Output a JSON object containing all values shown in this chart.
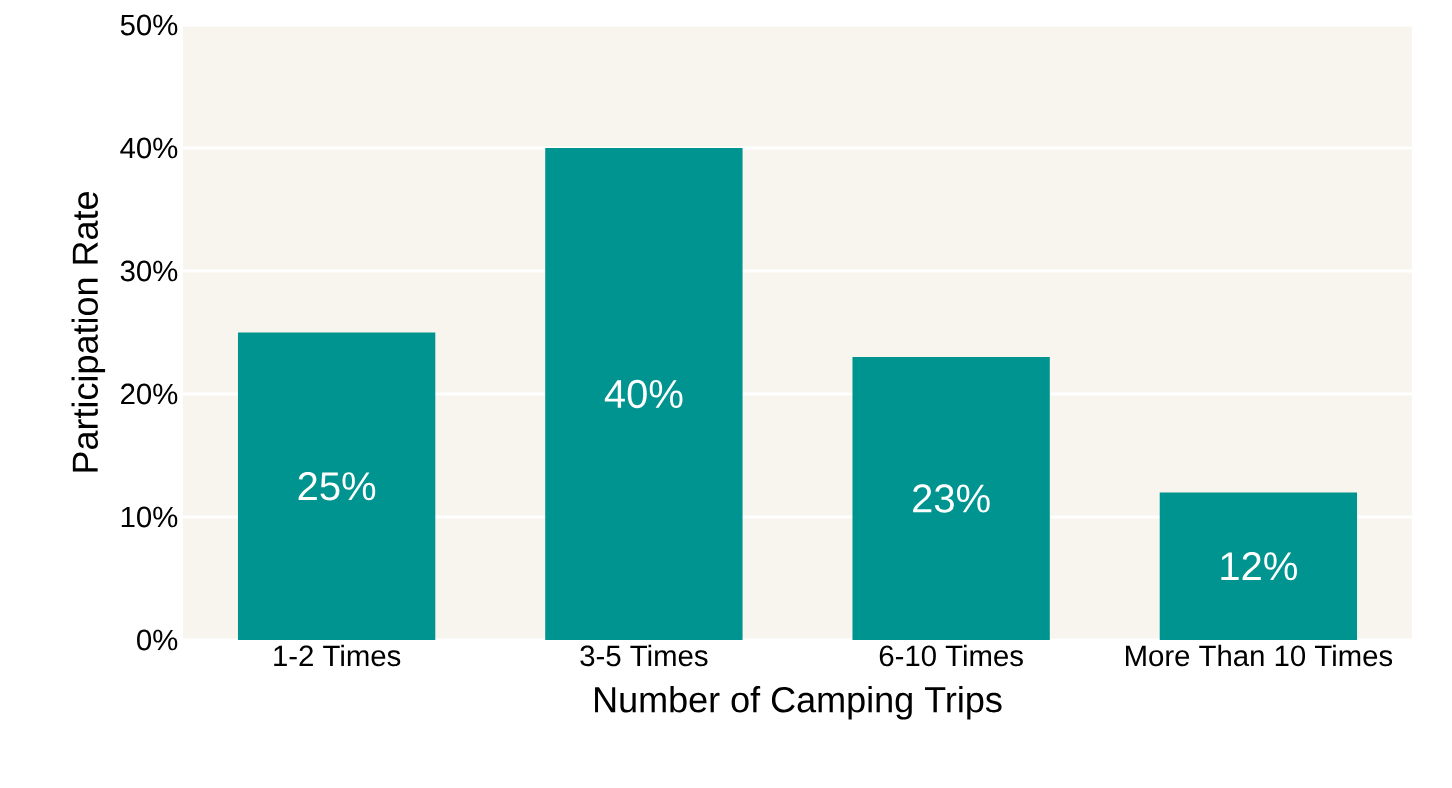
{
  "chart_data": {
    "type": "bar",
    "xlabel": "Number of Camping Trips",
    "ylabel": "Participation Rate",
    "categories": [
      "1-2 Times",
      "3-5 Times",
      "6-10 Times",
      "More Than 10 Times"
    ],
    "values": [
      25,
      40,
      23,
      12
    ],
    "value_labels": [
      "25%",
      "40%",
      "23%",
      "12%"
    ],
    "color": "#009490",
    "ylim": [
      0,
      50
    ],
    "yticks": [
      {
        "value": 0,
        "label": "0%"
      },
      {
        "value": 10,
        "label": "10%"
      },
      {
        "value": 20,
        "label": "20%"
      },
      {
        "value": 30,
        "label": "30%"
      },
      {
        "value": 40,
        "label": "40%"
      },
      {
        "value": 50,
        "label": "50%"
      }
    ],
    "grid": "y"
  }
}
